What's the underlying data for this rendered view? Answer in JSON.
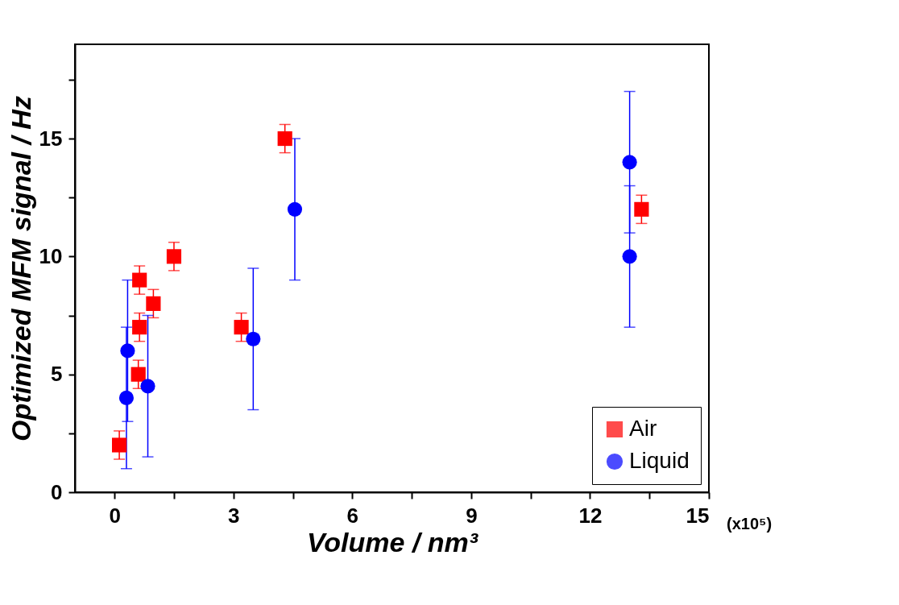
{
  "chart_data": {
    "type": "scatter",
    "xlabel": "Volume / nm³",
    "ylabel": "Optimized MFM signal / Hz",
    "annotations": [
      "(x10⁵)"
    ],
    "xlim": [
      -1,
      15
    ],
    "ylim": [
      0,
      19
    ],
    "xticks": [
      0,
      {
        "value": 1.5,
        "label": null
      },
      3,
      {
        "value": 4.5,
        "label": null
      },
      6,
      {
        "value": 7.5,
        "label": null
      },
      9,
      {
        "value": 10.5,
        "label": null
      },
      12,
      {
        "value": 13.5,
        "label": null
      },
      15
    ],
    "yticks": [
      0,
      {
        "value": 2.5,
        "label": null
      },
      5,
      {
        "value": 7.5,
        "label": null
      },
      10,
      {
        "value": 12.5,
        "label": null
      },
      15,
      {
        "value": 17.5,
        "label": null
      }
    ],
    "grid": false,
    "legend": "bottom right",
    "series": [
      {
        "name": "Air",
        "color": "#ff0000",
        "marker": "square",
        "x": [
          0.12,
          0.6,
          0.63,
          0.63,
          0.98,
          1.5,
          3.2,
          4.3,
          13.3
        ],
        "values": [
          2,
          5,
          7,
          9,
          8,
          10,
          7,
          15,
          12
        ],
        "errors": [
          0.6,
          0.6,
          0.6,
          0.6,
          0.6,
          0.6,
          0.6,
          0.6,
          0.6
        ]
      },
      {
        "name": "Liquid",
        "color": "#0000ff",
        "marker": "circle",
        "x": [
          0.3,
          0.33,
          0.84,
          3.5,
          4.55,
          13.0,
          13.0
        ],
        "values": [
          4,
          6,
          4.5,
          6.5,
          12,
          14,
          10
        ],
        "errors": [
          3,
          3,
          3,
          3,
          3,
          3,
          3
        ]
      }
    ]
  }
}
